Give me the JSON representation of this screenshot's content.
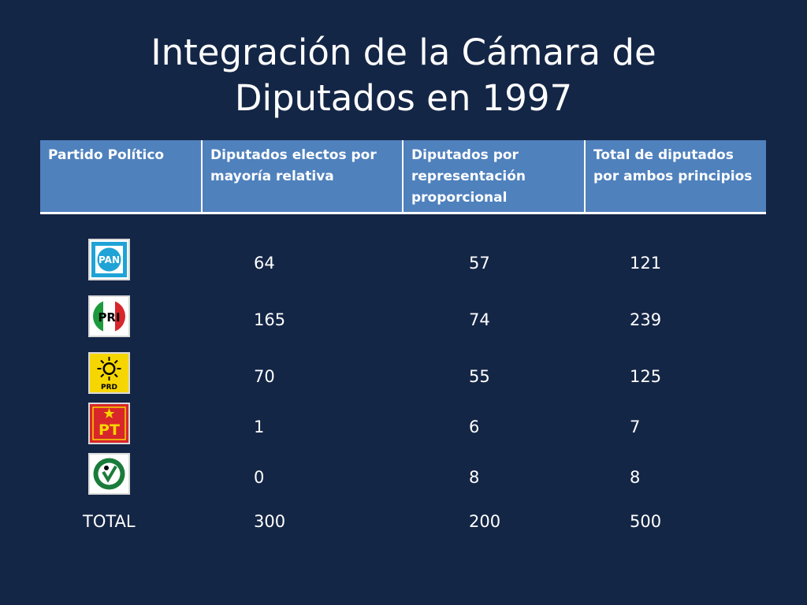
{
  "slide": {
    "title_line1": "Integración de la Cámara de",
    "title_line2": "Diputados en 1997"
  },
  "table": {
    "headers": [
      "Partido Político",
      "Diputados electos por mayoría relativa",
      "Diputados por representación proporcional",
      "Total de diputados por ambos principios"
    ],
    "rows": [
      {
        "party_icon": "pan-logo-icon",
        "logo_text": "PAN",
        "mayoria": "64",
        "proporcional": "57",
        "total": "121"
      },
      {
        "party_icon": "pri-logo-icon",
        "logo_text": "PRI",
        "mayoria": "165",
        "proporcional": "74",
        "total": "239"
      },
      {
        "party_icon": "prd-logo-icon",
        "logo_text": "PRD",
        "mayoria": "70",
        "proporcional": "55",
        "total": "125"
      },
      {
        "party_icon": "pt-logo-icon",
        "logo_text": "PT",
        "mayoria": "1",
        "proporcional": "6",
        "total": "7"
      },
      {
        "party_icon": "pvem-logo-icon",
        "logo_text": "",
        "mayoria": "0",
        "proporcional": "8",
        "total": "8"
      }
    ],
    "total_row": {
      "label": "TOTAL",
      "mayoria": "300",
      "proporcional": "200",
      "total": "500"
    }
  },
  "colors": {
    "background": "#142646",
    "header_fill": "#4f81bd",
    "pan_blue": "#1fa3d6",
    "pri_green": "#1d9a3c",
    "pri_red": "#d8262a",
    "prd_yellow": "#f6d600",
    "pt_red": "#d8262a",
    "pvem_green": "#1a7c3a"
  }
}
